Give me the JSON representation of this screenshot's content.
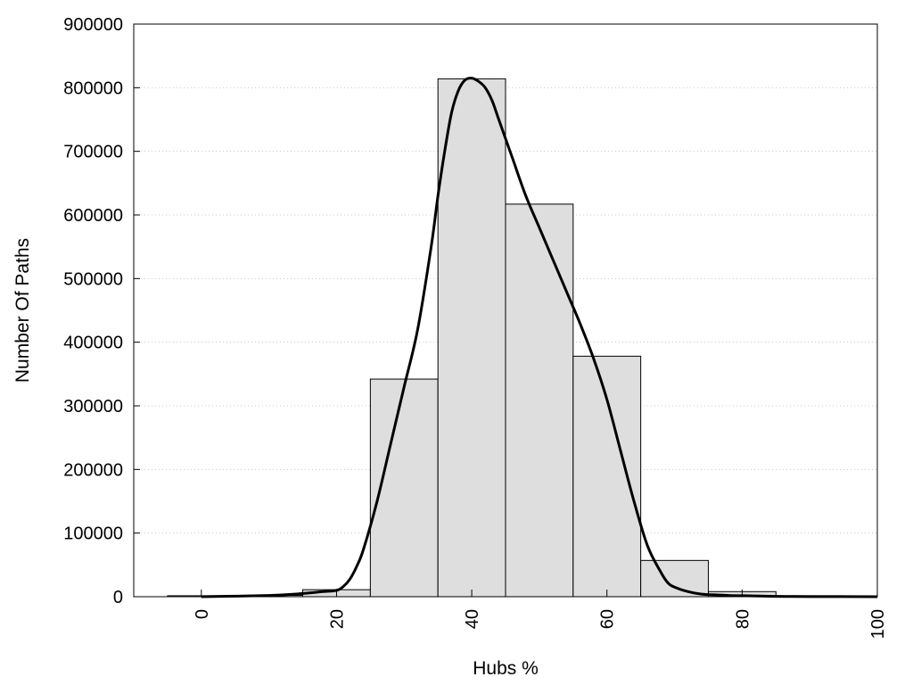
{
  "chart_data": {
    "type": "bar",
    "title": "",
    "xlabel": "Hubs %",
    "ylabel": "Number Of Paths",
    "xlim": [
      -10,
      100
    ],
    "ylim": [
      0,
      900000
    ],
    "x_ticks": [
      "0",
      "20",
      "40",
      "60",
      "80",
      "100"
    ],
    "y_ticks": [
      "0",
      "100000",
      "200000",
      "300000",
      "400000",
      "500000",
      "600000",
      "700000",
      "800000",
      "900000"
    ],
    "grid": "horizontal dotted",
    "legend": "none",
    "bar_color": "#dedede",
    "bar_edge_color": "#000000",
    "bins": [
      {
        "x0": -5,
        "x1": 5,
        "value": 1500
      },
      {
        "x0": 5,
        "x1": 15,
        "value": 2000
      },
      {
        "x0": 15,
        "x1": 25,
        "value": 11000
      },
      {
        "x0": 25,
        "x1": 35,
        "value": 342000
      },
      {
        "x0": 35,
        "x1": 45,
        "value": 814000
      },
      {
        "x0": 45,
        "x1": 55,
        "value": 617000
      },
      {
        "x0": 55,
        "x1": 65,
        "value": 378000
      },
      {
        "x0": 65,
        "x1": 75,
        "value": 57000
      },
      {
        "x0": 75,
        "x1": 85,
        "value": 8000
      },
      {
        "x0": 85,
        "x1": 95,
        "value": 1500
      }
    ],
    "density_curve": {
      "x": [
        0,
        10,
        15,
        18,
        20,
        21,
        22,
        23,
        24,
        26,
        28,
        30,
        32,
        34,
        35,
        36,
        37,
        38,
        39,
        40,
        41,
        42,
        43,
        44,
        46,
        48,
        50,
        52,
        54,
        56,
        58,
        60,
        62,
        64,
        66,
        68,
        69,
        70,
        72,
        74,
        76,
        78,
        80,
        85,
        90,
        100
      ],
      "y": [
        0,
        2000,
        5000,
        8000,
        10000,
        16000,
        28000,
        48000,
        75000,
        150000,
        240000,
        330000,
        420000,
        550000,
        630000,
        700000,
        760000,
        795000,
        812000,
        815000,
        810000,
        800000,
        780000,
        750000,
        690000,
        630000,
        580000,
        530000,
        480000,
        430000,
        375000,
        310000,
        230000,
        150000,
        80000,
        38000,
        22000,
        15000,
        8000,
        4000,
        3000,
        2000,
        1500,
        500,
        200,
        0
      ]
    }
  }
}
